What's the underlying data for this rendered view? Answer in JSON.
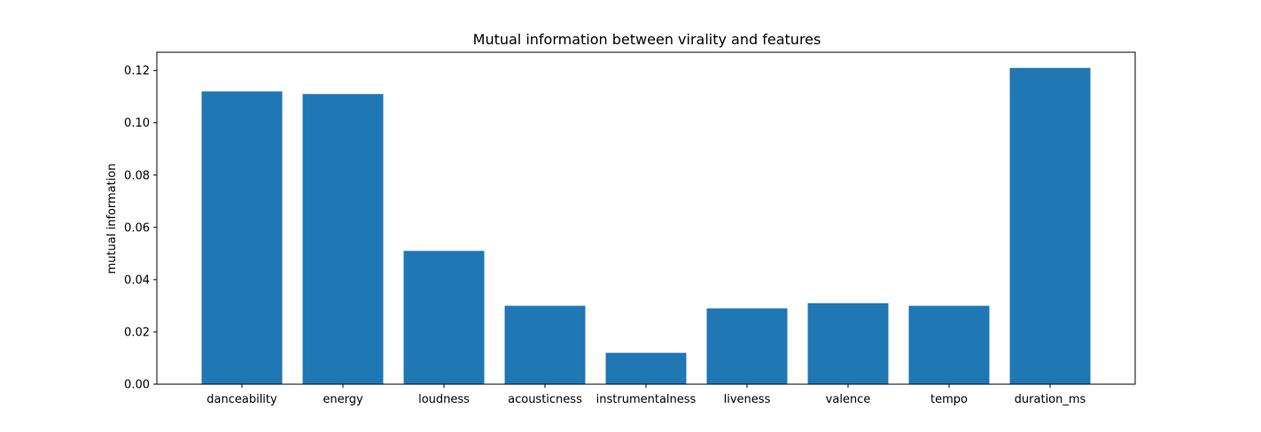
{
  "chart_data": {
    "type": "bar",
    "title": "Mutual information between virality and features",
    "xlabel": "",
    "ylabel": "mutual information",
    "categories": [
      "danceability",
      "energy",
      "loudness",
      "acousticness",
      "instrumentalness",
      "liveness",
      "valence",
      "tempo",
      "duration_ms"
    ],
    "values": [
      0.112,
      0.111,
      0.051,
      0.03,
      0.012,
      0.029,
      0.031,
      0.03,
      0.121
    ],
    "ylim": [
      0,
      0.127
    ],
    "yticks": [
      0.0,
      0.02,
      0.04,
      0.06,
      0.08,
      0.1,
      0.12
    ],
    "ytick_labels": [
      "0.00",
      "0.02",
      "0.04",
      "0.06",
      "0.08",
      "0.10",
      "0.12"
    ],
    "grid": false,
    "bar_color": "#1f77b4"
  }
}
